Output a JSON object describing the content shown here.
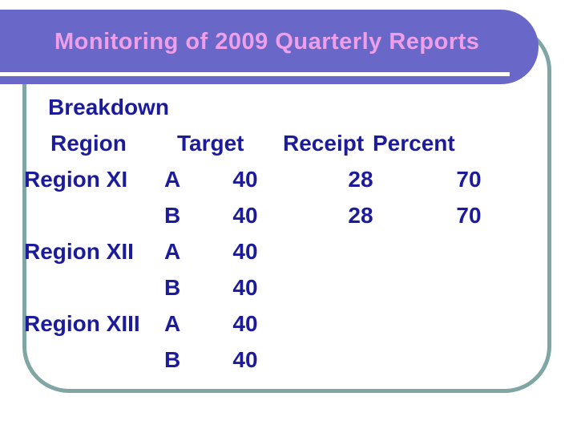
{
  "slide": {
    "title": "Monitoring of 2009 Quarterly Reports",
    "heading": "Breakdown",
    "table": {
      "header": {
        "region": "Region",
        "target": "Target",
        "receipt": "Receipt",
        "percent": "Percent"
      },
      "rows": [
        {
          "region": "Region XI",
          "sub": "A",
          "target": "40",
          "receipt": "28",
          "percent": "70"
        },
        {
          "region": "",
          "sub": "B",
          "target": "40",
          "receipt": "28",
          "percent": "70"
        },
        {
          "region": "Region XII",
          "sub": "A",
          "target": "40",
          "receipt": "",
          "percent": ""
        },
        {
          "region": "",
          "sub": "B",
          "target": "40",
          "receipt": "",
          "percent": ""
        },
        {
          "region": "Region XIII",
          "sub": "A",
          "target": "40",
          "receipt": "",
          "percent": ""
        },
        {
          "region": "",
          "sub": "B",
          "target": "40",
          "receipt": "",
          "percent": ""
        }
      ]
    },
    "colors": {
      "title_bar": "#6968c8",
      "title_text": "#ef9fe9",
      "body_text": "#1b1b9c",
      "frame_border": "#7fa6a2",
      "underline": "#ffffff"
    }
  }
}
